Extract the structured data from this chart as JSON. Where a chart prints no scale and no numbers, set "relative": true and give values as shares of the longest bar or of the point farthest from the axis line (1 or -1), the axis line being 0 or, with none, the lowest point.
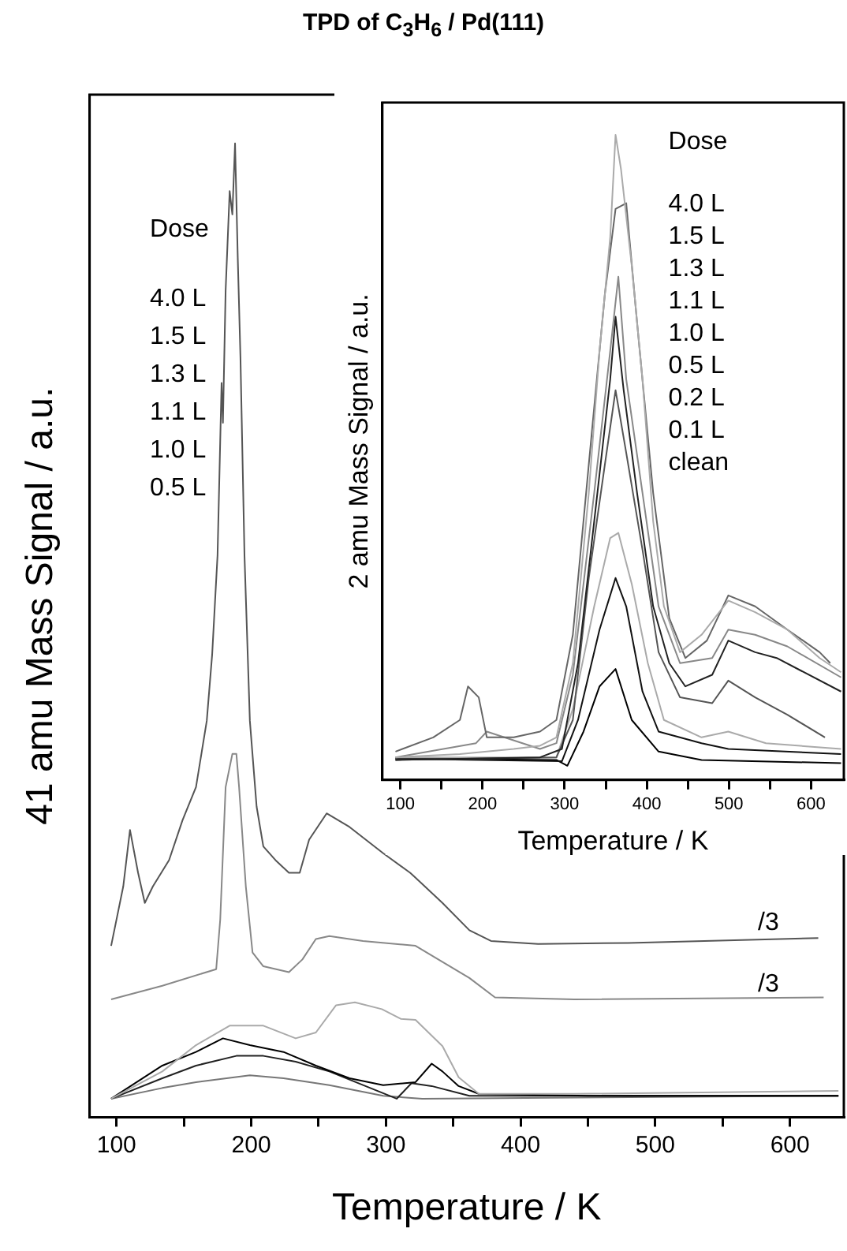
{
  "chart_data": [
    {
      "type": "line",
      "title": "TPD of C$_{3}$H$_{6}$ / Pd(111)",
      "xlabel": "Temperature / K",
      "ylabel": "41 amu Mass Signal / a.u.",
      "relative": true,
      "marker": "none",
      "xlim": [
        80,
        640
      ],
      "xticks": [
        100,
        {
          "value": 150,
          "label": null
        },
        200,
        {
          "value": 250,
          "label": null
        },
        300,
        {
          "value": 350,
          "label": null
        },
        400,
        {
          "value": 450,
          "label": null
        },
        500,
        {
          "value": 550,
          "label": null
        },
        600
      ],
      "annotations": [
        "Dose",
        "4.0 L",
        "1.5 L",
        "1.3 L",
        "1.1 L",
        "1.0 L",
        "0.5 L",
        "/3",
        "/3"
      ],
      "series": [
        {
          "color": "#555555",
          "x": [
            96,
            105,
            110,
            116,
            121,
            127,
            139,
            149,
            159,
            167,
            171,
            175,
            178,
            179,
            181,
            184,
            186,
            188,
            190,
            192,
            195,
            199,
            204,
            209,
            218,
            228,
            236,
            243,
            256,
            273,
            298,
            318,
            322,
            342,
            362,
            378,
            413,
            480,
            621
          ],
          "values": [
            0.176,
            0.237,
            0.295,
            0.251,
            0.22,
            0.237,
            0.264,
            0.305,
            0.339,
            0.407,
            0.475,
            0.577,
            0.754,
            0.713,
            0.849,
            0.951,
            0.927,
            1,
            0.883,
            0.781,
            0.577,
            0.407,
            0.319,
            0.278,
            0.264,
            0.251,
            0.251,
            0.285,
            0.312,
            0.298,
            0.271,
            0.251,
            0.246,
            0.22,
            0.192,
            0.181,
            0.178,
            0.179,
            0.184
          ]
        },
        {
          "color": "#888888",
          "x": [
            96,
            134,
            174,
            177,
            181,
            186,
            189,
            191,
            196,
            201,
            209,
            228,
            238,
            248,
            258,
            283,
            322,
            362,
            381,
            440,
            625
          ],
          "values": [
            0.121,
            0.135,
            0.152,
            0.203,
            0.339,
            0.373,
            0.373,
            0.339,
            0.237,
            0.169,
            0.155,
            0.149,
            0.162,
            0.183,
            0.186,
            0.181,
            0.176,
            0.143,
            0.123,
            0.121,
            0.123
          ]
        },
        {
          "color": "#aaaaaa",
          "x": [
            96,
            134,
            159,
            184,
            209,
            233,
            248,
            263,
            277,
            297,
            311,
            322,
            342,
            354,
            369,
            440,
            636
          ],
          "values": [
            0.019,
            0.047,
            0.074,
            0.094,
            0.094,
            0.081,
            0.087,
            0.115,
            0.118,
            0.111,
            0.101,
            0.1,
            0.073,
            0.041,
            0.024,
            0.024,
            0.027
          ]
        },
        {
          "color": "#000000",
          "x": [
            96,
            134,
            159,
            179,
            199,
            224,
            248,
            273,
            298,
            322,
            334,
            342,
            354,
            369,
            450,
            636
          ],
          "values": [
            0.019,
            0.053,
            0.067,
            0.081,
            0.074,
            0.067,
            0.053,
            0.04,
            0.033,
            0.036,
            0.055,
            0.047,
            0.032,
            0.024,
            0.022,
            0.022
          ]
        },
        {
          "color": "#222222",
          "x": [
            96,
            134,
            159,
            189,
            209,
            233,
            258,
            283,
            308,
            319,
            334,
            362,
            636
          ],
          "values": [
            0.019,
            0.04,
            0.053,
            0.063,
            0.063,
            0.057,
            0.047,
            0.033,
            0.019,
            0.035,
            0.032,
            0.022,
            0.022
          ]
        },
        {
          "color": "#777777",
          "x": [
            96,
            134,
            159,
            199,
            224,
            258,
            298,
            327,
            636
          ],
          "values": [
            0.019,
            0.03,
            0.036,
            0.043,
            0.04,
            0.033,
            0.022,
            0.019,
            0.022
          ]
        }
      ]
    },
    {
      "type": "line",
      "xlabel": "Temperature / K",
      "ylabel": "2 amu Mass Signal / a.u.",
      "relative": true,
      "marker": "none",
      "xlim": [
        78,
        640
      ],
      "xticks": [
        100,
        {
          "value": 150,
          "label": null
        },
        200,
        {
          "value": 250,
          "label": null
        },
        300,
        {
          "value": 350,
          "label": null
        },
        400,
        {
          "value": 450,
          "label": null
        },
        500,
        {
          "value": 550,
          "label": null
        },
        600
      ],
      "annotations": [
        "Dose",
        "4.0 L",
        "1.5 L",
        "1.3 L",
        "1.1 L",
        "1.0 L",
        "0.5 L",
        "0.2 L",
        "0.1 L",
        "clean"
      ],
      "series": [
        {
          "color": "#aaaaaa",
          "x": [
            94,
            172.5,
            238,
            270,
            290,
            310,
            329.4,
            342.5,
            355.5,
            362,
            368.6,
            381.7,
            394.8,
            407.8,
            420.9,
            440.5,
            466.7,
            499.3,
            532,
            571.2,
            610.5,
            636.6
          ],
          "values": [
            0.035,
            0.04,
            0.048,
            0.053,
            0.066,
            0.181,
            0.445,
            0.665,
            0.841,
            1,
            0.947,
            0.797,
            0.621,
            0.401,
            0.269,
            0.198,
            0.225,
            0.278,
            0.26,
            0.233,
            0.189,
            0.167
          ]
        },
        {
          "color": "#666666",
          "x": [
            94,
            140,
            172.5,
            182.3,
            195.4,
            205.2,
            238,
            270,
            290,
            310,
            329.4,
            349,
            362,
            375,
            388.2,
            407.8,
            427.4,
            447,
            473.2,
            499.3,
            532,
            571.2,
            610.5,
            623.5
          ],
          "values": [
            0.044,
            0.066,
            0.093,
            0.145,
            0.128,
            0.066,
            0.066,
            0.075,
            0.093,
            0.225,
            0.489,
            0.753,
            0.885,
            0.894,
            0.709,
            0.445,
            0.251,
            0.189,
            0.216,
            0.286,
            0.269,
            0.233,
            0.198,
            0.181
          ]
        },
        {
          "color": "#888888",
          "x": [
            94,
            192.1,
            205.2,
            270,
            290,
            310,
            336,
            355.5,
            365.4,
            375,
            394.8,
            414.4,
            440.5,
            479.7,
            499.3,
            532,
            571.2,
            636.6
          ],
          "values": [
            0.035,
            0.057,
            0.075,
            0.048,
            0.057,
            0.163,
            0.445,
            0.665,
            0.78,
            0.621,
            0.445,
            0.269,
            0.181,
            0.189,
            0.233,
            0.225,
            0.207,
            0.159
          ]
        },
        {
          "color": "#222222",
          "x": [
            94,
            270,
            296.7,
            316.3,
            336,
            355.5,
            362,
            371.9,
            388.2,
            407.8,
            427.4,
            447,
            479.7,
            499.3,
            532,
            558.2,
            636.6
          ],
          "values": [
            0.031,
            0.035,
            0.048,
            0.181,
            0.401,
            0.621,
            0.718,
            0.604,
            0.445,
            0.269,
            0.181,
            0.145,
            0.163,
            0.216,
            0.198,
            0.189,
            0.137
          ]
        },
        {
          "color": "#555555",
          "x": [
            94,
            290,
            310,
            329.4,
            349,
            362,
            375,
            394.8,
            414.4,
            440.5,
            479.7,
            499.3,
            532,
            571.2,
            617
          ],
          "values": [
            0.031,
            0.035,
            0.093,
            0.313,
            0.489,
            0.604,
            0.507,
            0.357,
            0.198,
            0.128,
            0.119,
            0.154,
            0.128,
            0.101,
            0.066
          ]
        },
        {
          "color": "#aaaaaa",
          "x": [
            94,
            290,
            310,
            336,
            355.5,
            365.4,
            381.7,
            401.3,
            420.9,
            466.7,
            499.3,
            545.1,
            636.6
          ],
          "values": [
            0.035,
            0.035,
            0.11,
            0.269,
            0.375,
            0.383,
            0.304,
            0.181,
            0.093,
            0.066,
            0.075,
            0.057,
            0.048
          ]
        },
        {
          "color": "#111111",
          "x": [
            94,
            296.7,
            316.3,
            342.5,
            362,
            375,
            394.8,
            414.4,
            466.7,
            499.3,
            636.6
          ],
          "values": [
            0.033,
            0.029,
            0.093,
            0.233,
            0.313,
            0.269,
            0.137,
            0.075,
            0.057,
            0.048,
            0.04
          ]
        },
        {
          "color": "#000000",
          "x": [
            94,
            290,
            303.3,
            323,
            342.5,
            362,
            381.7,
            414.4,
            466.7,
            636.6
          ],
          "values": [
            0.033,
            0.031,
            0.022,
            0.075,
            0.145,
            0.172,
            0.093,
            0.044,
            0.031,
            0.026
          ]
        }
      ]
    }
  ]
}
